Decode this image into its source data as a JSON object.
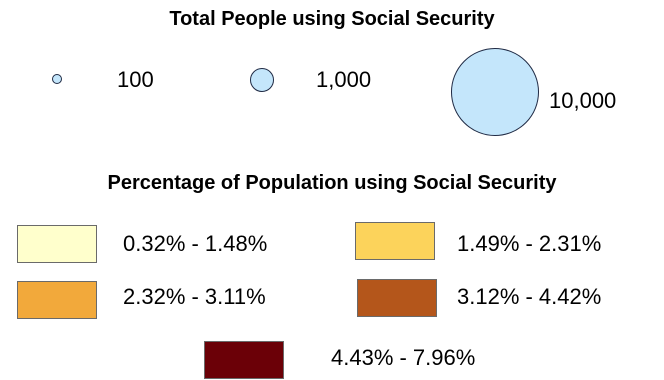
{
  "size_legend": {
    "title": "Total People using Social Security",
    "entries": [
      {
        "label": "100",
        "value": 100
      },
      {
        "label": "1,000",
        "value": 1000
      },
      {
        "label": "10,000",
        "value": 10000
      }
    ],
    "circle_fill": "#c4e6fb",
    "circle_stroke": "#1f2a44"
  },
  "color_legend": {
    "title": "Percentage of Population using Social Security",
    "classes": [
      {
        "label": "0.32% - 1.48%",
        "color": "#ffffcc"
      },
      {
        "label": "1.49% - 2.31%",
        "color": "#fcd35b"
      },
      {
        "label": "2.32% - 3.11%",
        "color": "#f2a93b"
      },
      {
        "label": "3.12% - 4.42%",
        "color": "#b4561b"
      },
      {
        "label": "4.43% - 7.96%",
        "color": "#6b0007"
      }
    ]
  }
}
